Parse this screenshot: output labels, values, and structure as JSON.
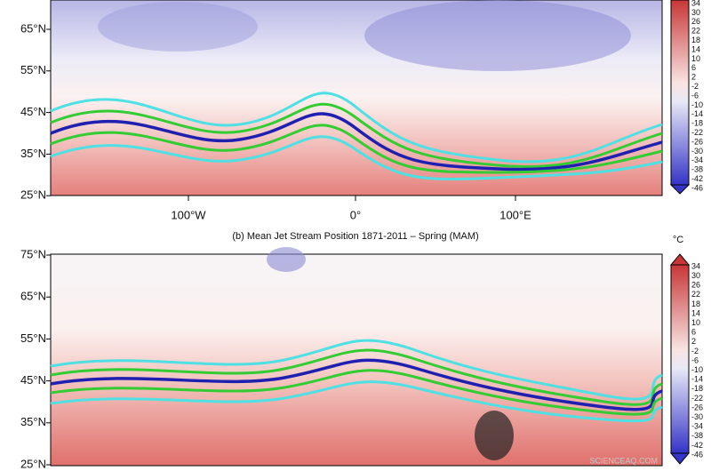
{
  "top_panel": {
    "lat_labels": [
      "65°N",
      "55°N",
      "45°N",
      "35°N",
      "25°N"
    ],
    "colorbar_labels": [
      "34",
      "30",
      "26",
      "22",
      "18",
      "14",
      "10",
      "6",
      "2",
      "-2",
      "-6",
      "-10",
      "-14",
      "-18",
      "-22",
      "-26",
      "-30",
      "-34",
      "-38",
      "-42",
      "-46"
    ]
  },
  "lon_labels": [
    "100°W",
    "0°",
    "100°E"
  ],
  "bottom_panel": {
    "title": "(b) Mean Jet Stream Position 1871-2011 – Spring  (MAM)",
    "lat_labels": [
      "75°N",
      "65°N",
      "55°N",
      "45°N",
      "35°N",
      "25°N"
    ],
    "colorbar_unit": "°C",
    "colorbar_labels": [
      "34",
      "30",
      "26",
      "22",
      "18",
      "14",
      "10",
      "6",
      "2",
      "-2",
      "-6",
      "-10",
      "-14",
      "-18",
      "-22",
      "-26",
      "-30",
      "-34",
      "-38",
      "-42",
      "-46"
    ]
  },
  "watermark": "SCIENCEAQ.COM"
}
